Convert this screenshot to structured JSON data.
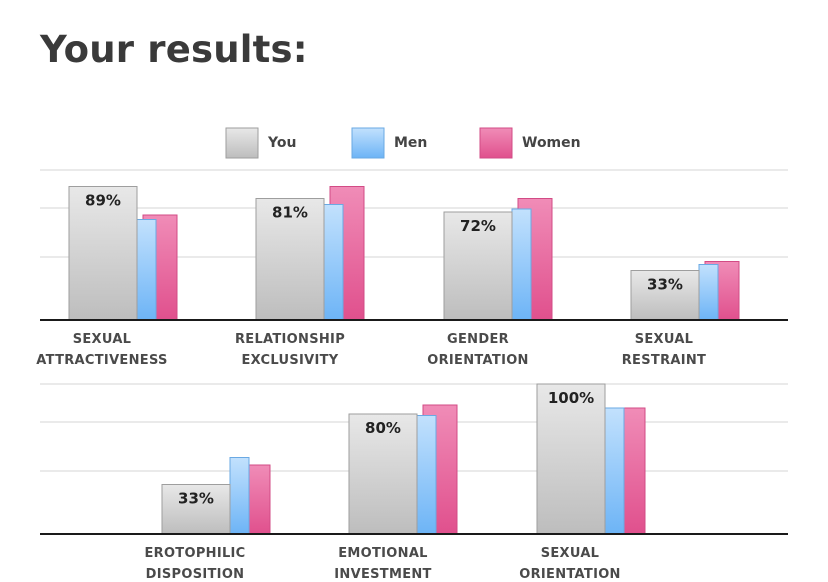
{
  "title": "Your results:",
  "legend": [
    {
      "label": "You",
      "color": "#d9d9d9"
    },
    {
      "label": "Men",
      "color": "#a9d3fb"
    },
    {
      "label": "Women",
      "color": "#ea6ea2"
    }
  ],
  "chart_data": [
    {
      "type": "bar",
      "categories": [
        [
          "SEXUAL",
          "ATTRACTIVENESS"
        ],
        [
          "RELATIONSHIP",
          "EXCLUSIVITY"
        ],
        [
          "GENDER",
          "ORIENTATION"
        ],
        [
          "SEXUAL",
          "RESTRAINT"
        ]
      ],
      "series": [
        {
          "name": "You",
          "values": [
            89,
            81,
            72,
            33
          ],
          "labels": [
            "89%",
            "81%",
            "72%",
            "33%"
          ]
        },
        {
          "name": "Men",
          "values": [
            67,
            77,
            74,
            37
          ]
        },
        {
          "name": "Women",
          "values": [
            70,
            89,
            81,
            39
          ]
        }
      ],
      "ylim": [
        0,
        100
      ],
      "grid": true,
      "legend_placement": "top"
    },
    {
      "type": "bar",
      "categories": [
        [
          "EROTOPHILIC",
          "DISPOSITION"
        ],
        [
          "EMOTIONAL",
          "INVESTMENT"
        ],
        [
          "SEXUAL",
          "ORIENTATION"
        ]
      ],
      "series": [
        {
          "name": "You",
          "values": [
            33,
            80,
            100
          ],
          "labels": [
            "33%",
            "80%",
            "100%"
          ]
        },
        {
          "name": "Men",
          "values": [
            51,
            79,
            84
          ]
        },
        {
          "name": "Women",
          "values": [
            46,
            86,
            84
          ]
        }
      ],
      "ylim": [
        0,
        100
      ],
      "grid": true
    }
  ]
}
